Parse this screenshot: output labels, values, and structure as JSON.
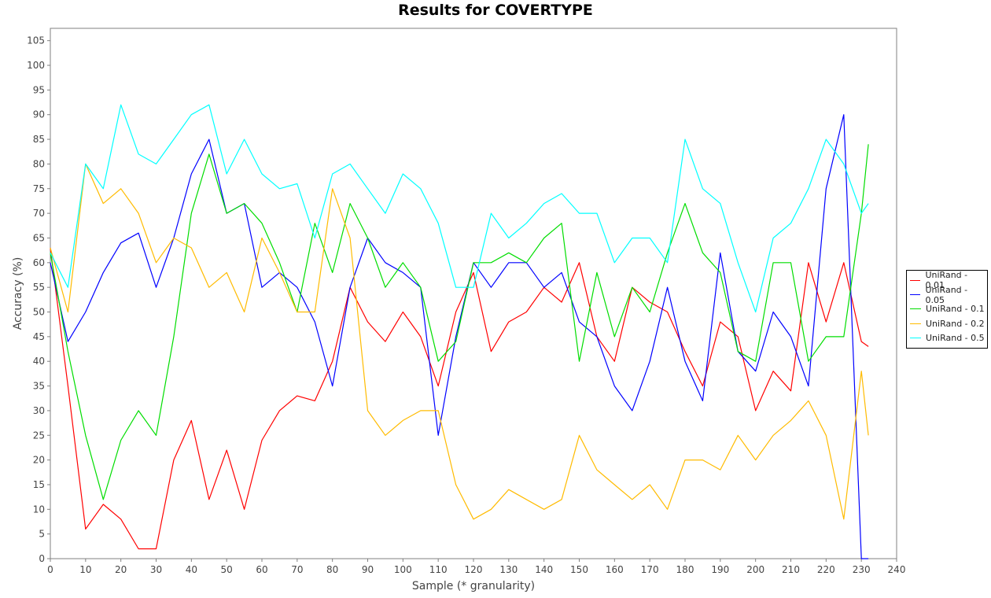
{
  "chart_data": {
    "type": "line",
    "title": "Results for COVERTYPE",
    "xlabel": "Sample (* granularity)",
    "ylabel": "Accuracy (%)",
    "xlim": [
      0,
      240
    ],
    "ylim": [
      0,
      107.5
    ],
    "xticks": [
      0,
      10,
      20,
      30,
      40,
      50,
      60,
      70,
      80,
      90,
      100,
      110,
      120,
      130,
      140,
      150,
      160,
      170,
      180,
      190,
      200,
      210,
      220,
      230,
      240
    ],
    "yticks": [
      0,
      5,
      10,
      15,
      20,
      25,
      30,
      35,
      40,
      45,
      50,
      55,
      60,
      65,
      70,
      75,
      80,
      85,
      90,
      95,
      100,
      105
    ],
    "grid": false,
    "legend_position": "right",
    "x": [
      0,
      5,
      10,
      15,
      20,
      25,
      30,
      35,
      40,
      45,
      50,
      55,
      60,
      65,
      70,
      75,
      80,
      85,
      90,
      95,
      100,
      105,
      110,
      115,
      120,
      125,
      130,
      135,
      140,
      145,
      150,
      155,
      160,
      165,
      170,
      175,
      180,
      185,
      190,
      195,
      200,
      205,
      210,
      215,
      220,
      225,
      230,
      232
    ],
    "series": [
      {
        "name": "UniRand - 0.01",
        "color": "#ff0000",
        "values": [
          63,
          35,
          6,
          11,
          8,
          2,
          2,
          20,
          28,
          12,
          22,
          10,
          24,
          30,
          33,
          32,
          40,
          55,
          48,
          44,
          50,
          45,
          35,
          50,
          58,
          42,
          48,
          50,
          55,
          52,
          60,
          45,
          40,
          55,
          52,
          50,
          42,
          35,
          48,
          45,
          30,
          38,
          34,
          60,
          48,
          60,
          44,
          43
        ]
      },
      {
        "name": "UniRand - 0.05",
        "color": "#0000ff",
        "values": [
          60,
          44,
          50,
          58,
          64,
          66,
          55,
          65,
          78,
          85,
          70,
          72,
          55,
          58,
          55,
          48,
          35,
          55,
          65,
          60,
          58,
          55,
          25,
          45,
          60,
          55,
          60,
          60,
          55,
          58,
          48,
          45,
          35,
          30,
          40,
          55,
          40,
          32,
          62,
          42,
          38,
          50,
          45,
          35,
          75,
          90,
          0,
          0
        ]
      },
      {
        "name": "UniRand - 0.1",
        "color": "#00dd00",
        "values": [
          62,
          42,
          25,
          12,
          24,
          30,
          25,
          45,
          70,
          82,
          70,
          72,
          68,
          60,
          50,
          68,
          58,
          72,
          65,
          55,
          60,
          55,
          40,
          44,
          60,
          60,
          62,
          60,
          65,
          68,
          40,
          58,
          45,
          55,
          50,
          62,
          72,
          62,
          58,
          42,
          40,
          60,
          60,
          40,
          45,
          45,
          70,
          84
        ]
      },
      {
        "name": "UniRand - 0.2",
        "color": "#ffbb00",
        "values": [
          63,
          50,
          80,
          72,
          75,
          70,
          60,
          65,
          63,
          55,
          58,
          50,
          65,
          58,
          50,
          50,
          75,
          65,
          30,
          25,
          28,
          30,
          30,
          15,
          8,
          10,
          14,
          12,
          10,
          12,
          25,
          18,
          15,
          12,
          15,
          10,
          20,
          20,
          18,
          25,
          20,
          25,
          28,
          32,
          25,
          8,
          38,
          25
        ]
      },
      {
        "name": "UniRand - 0.5",
        "color": "#00ffff",
        "values": [
          62,
          55,
          80,
          75,
          92,
          82,
          80,
          85,
          90,
          92,
          78,
          85,
          78,
          75,
          76,
          65,
          78,
          80,
          75,
          70,
          78,
          75,
          68,
          55,
          55,
          70,
          65,
          68,
          72,
          74,
          70,
          70,
          60,
          65,
          65,
          60,
          85,
          75,
          72,
          60,
          50,
          65,
          68,
          75,
          85,
          80,
          70,
          72
        ]
      }
    ]
  }
}
